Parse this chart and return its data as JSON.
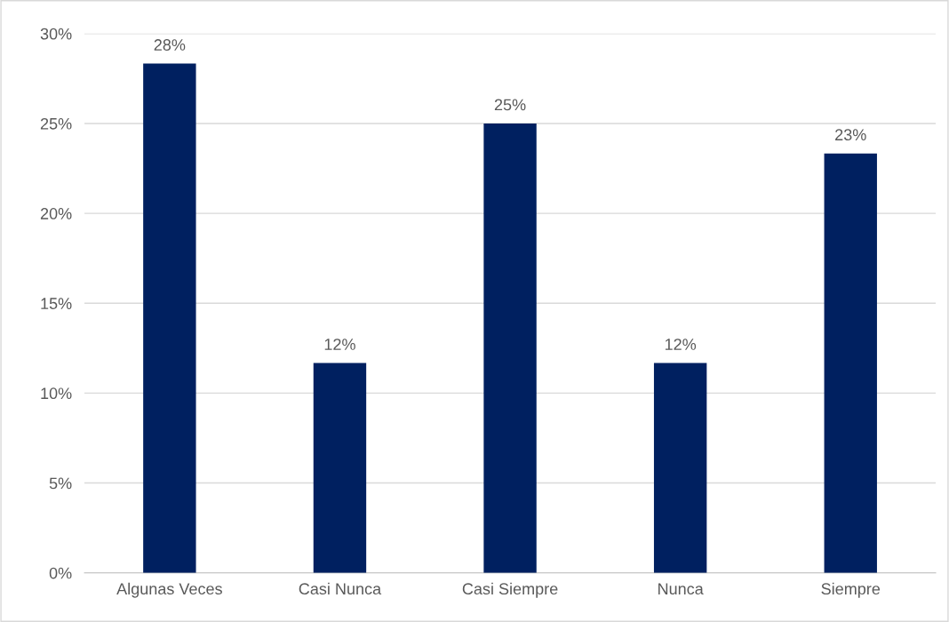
{
  "chart_data": {
    "type": "bar",
    "categories": [
      "Algunas Veces",
      "Casi Nunca",
      "Casi Siempre",
      "Nunca",
      "Siempre"
    ],
    "values": [
      28.33,
      11.67,
      25,
      11.67,
      23.33
    ],
    "value_labels": [
      "28%",
      "12%",
      "25%",
      "12%",
      "23%"
    ],
    "color": "#002060",
    "ylim": [
      0,
      30
    ],
    "yticks": [
      {
        "value": 0,
        "label": "0%"
      },
      {
        "value": 5,
        "label": "5%"
      },
      {
        "value": 10,
        "label": "10%"
      },
      {
        "value": 15,
        "label": "15%"
      },
      {
        "value": 20,
        "label": "20%"
      },
      {
        "value": 25,
        "label": "25%"
      },
      {
        "value": 30,
        "label": "30%"
      }
    ],
    "grid": "y"
  }
}
